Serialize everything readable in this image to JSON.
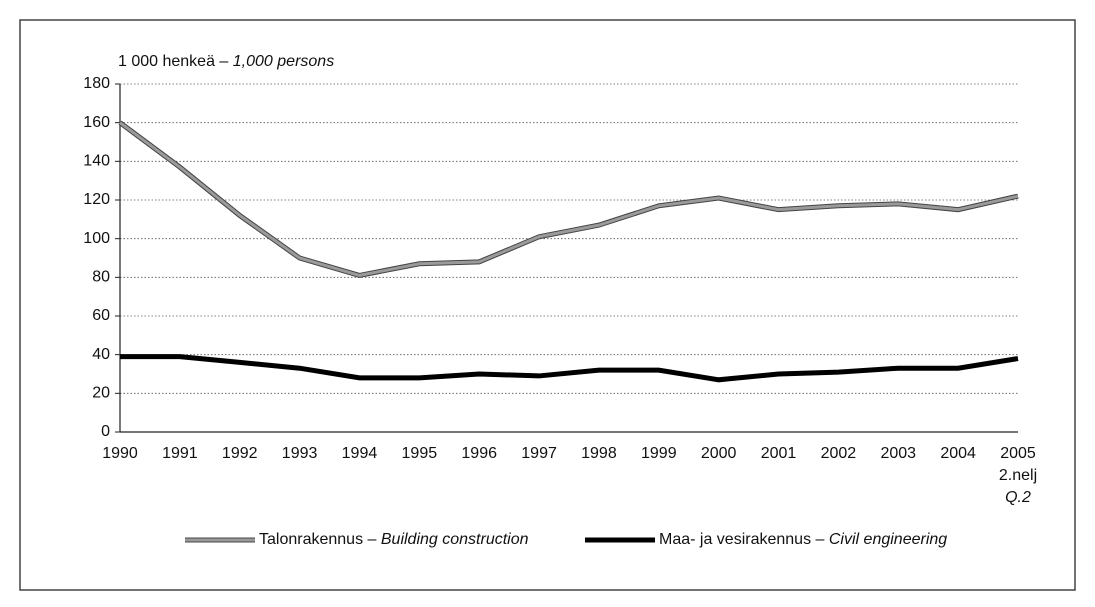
{
  "chart_data": {
    "type": "line",
    "ylabel": "1 000 henkeä –",
    "ylabel_en": "1,000 persons",
    "categories": [
      "1990",
      "1991",
      "1992",
      "1993",
      "1994",
      "1995",
      "1996",
      "1997",
      "1998",
      "1999",
      "2000",
      "2001",
      "2002",
      "2003",
      "2004",
      "2005"
    ],
    "last_category_note": "2.nelj",
    "last_category_note_en": "Q.2",
    "series": [
      {
        "name": "Talonrakennus –",
        "name_en": "Building construction",
        "color": "#9a9a9a",
        "values": [
          160,
          137,
          112,
          90,
          81,
          87,
          88,
          101,
          107,
          117,
          121,
          115,
          117,
          118,
          115,
          122
        ]
      },
      {
        "name": "Maa- ja vesirakennus –",
        "name_en": "Civil engineering",
        "color": "#000000",
        "values": [
          39,
          39,
          36,
          33,
          28,
          28,
          30,
          29,
          32,
          32,
          27,
          30,
          31,
          33,
          33,
          38
        ]
      }
    ],
    "ylim": [
      0,
      180
    ],
    "yticks": [
      0,
      20,
      40,
      60,
      80,
      100,
      120,
      140,
      160,
      180
    ],
    "grid": true
  }
}
